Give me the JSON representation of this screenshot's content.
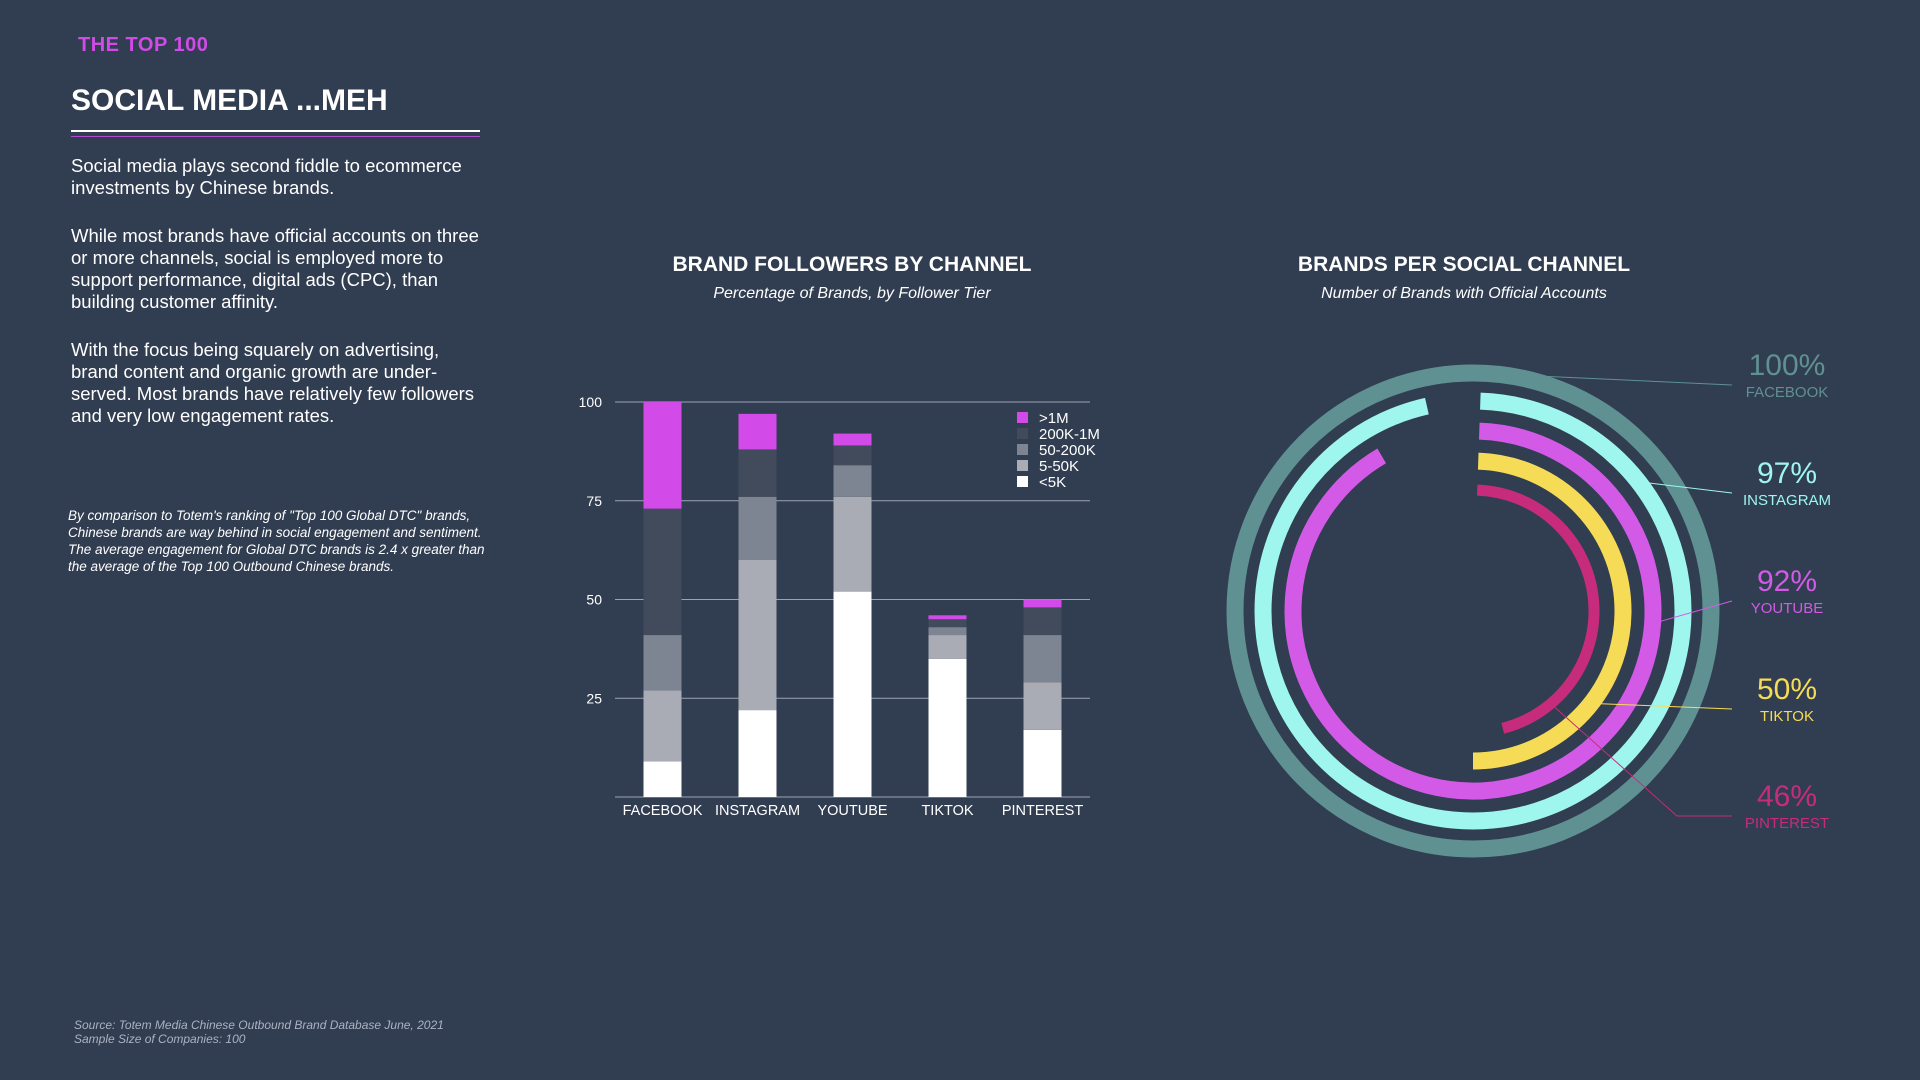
{
  "header": {
    "kicker": "THE TOP 100",
    "title": "SOCIAL MEDIA ...MEH"
  },
  "body": {
    "p1": "Social media plays second fiddle to ecommerce investments by Chinese brands.",
    "p2": "While most brands have official accounts on three or more channels, social is employed more to support performance, digital ads (CPC), than building customer affinity.",
    "p3": "With the focus being squarely on advertising, brand content and organic growth are under-served. Most brands have relatively few followers and very low engagement rates.",
    "note": "By comparison to Totem's ranking of \"Top 100 Global DTC\" brands, Chinese brands are way behind in social engagement and sentiment. The average engagement for Global DTC brands is 2.4 x greater than the average of the Top 100 Outbound Chinese brands."
  },
  "footer": {
    "source": "Source: Totem Media Chinese Outbound Brand Database June, 2021",
    "sample": "Sample Size of Companies: 100"
  },
  "chart_data": [
    {
      "type": "bar",
      "stacked": true,
      "title": "BRAND FOLLOWERS BY CHANNEL",
      "subtitle": "Percentage of Brands, by Follower Tier",
      "categories": [
        "FACEBOOK",
        "INSTAGRAM",
        "YOUTUBE",
        "TIKTOK",
        "PINTEREST"
      ],
      "ylim": [
        0,
        100
      ],
      "yticks": [
        25,
        50,
        75,
        100
      ],
      "legend_position": "top-right",
      "series": [
        {
          "name": "<5K",
          "color": "#ffffff",
          "values": [
            9,
            22,
            52,
            35,
            17
          ]
        },
        {
          "name": "5-50K",
          "color": "#a9abb5",
          "values": [
            18,
            38,
            24,
            6,
            12
          ]
        },
        {
          "name": "50-200K",
          "color": "#7e8592",
          "values": [
            14,
            16,
            8,
            2,
            12
          ]
        },
        {
          "name": "200K-1M",
          "color": "#414b5c",
          "values": [
            32,
            12,
            5,
            2,
            7
          ]
        },
        {
          "name": ">1M",
          "color": "#d24ae8",
          "values": [
            27,
            9,
            3,
            1,
            2
          ]
        }
      ]
    },
    {
      "type": "radial-bar",
      "title": "BRANDS PER SOCIAL CHANNEL",
      "subtitle": "Number of Brands with Official Accounts",
      "categories": [
        "FACEBOOK",
        "INSTAGRAM",
        "YOUTUBE",
        "TIKTOK",
        "PINTEREST"
      ],
      "values": [
        100,
        97,
        92,
        50,
        46
      ],
      "labels": [
        "100%",
        "97%",
        "92%",
        "50%",
        "46%"
      ],
      "colors": [
        "#5f9193",
        "#9ef6ef",
        "#d35ae6",
        "#f6dc56",
        "#c72c7c"
      ]
    }
  ]
}
